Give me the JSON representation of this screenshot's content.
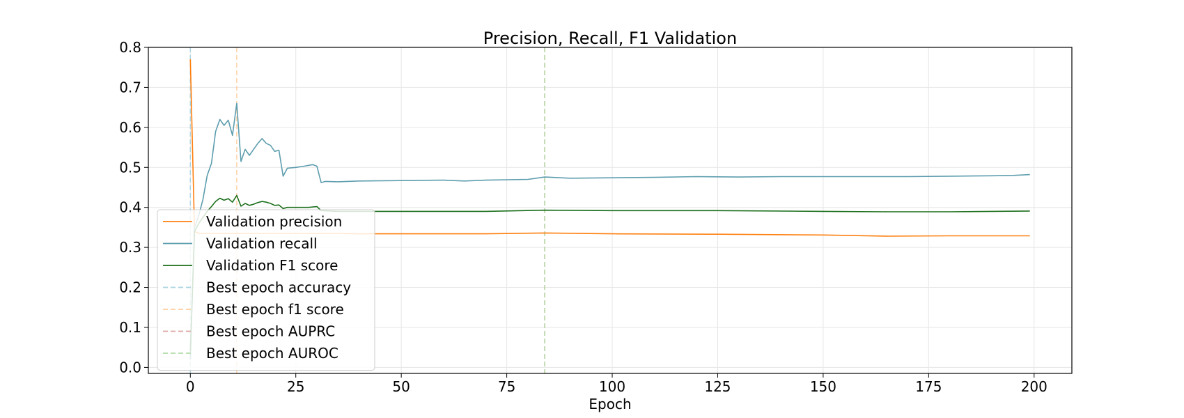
{
  "chart_data": {
    "type": "line",
    "title": "Precision, Recall, F1 Validation",
    "xlabel": "Epoch",
    "ylabel": "",
    "xlim": [
      -9.95,
      208.95
    ],
    "ylim": [
      -0.015,
      0.8
    ],
    "xticks": [
      0,
      25,
      50,
      75,
      100,
      125,
      150,
      175,
      200
    ],
    "yticks": [
      0.0,
      0.1,
      0.2,
      0.3,
      0.4,
      0.5,
      0.6,
      0.7,
      0.8
    ],
    "xtick_labels": [
      "0",
      "25",
      "50",
      "75",
      "100",
      "125",
      "150",
      "175",
      "200"
    ],
    "ytick_labels": [
      "0.0",
      "0.1",
      "0.2",
      "0.3",
      "0.4",
      "0.5",
      "0.6",
      "0.7",
      "0.8"
    ],
    "grid": true,
    "legend_position": "lower-left",
    "series": [
      {
        "name": "Validation precision",
        "color": "#ff7f0e",
        "x": [
          0,
          1,
          2,
          3,
          5,
          7,
          9,
          11,
          13,
          15,
          18,
          21,
          25,
          30,
          35,
          40,
          50,
          60,
          70,
          84,
          100,
          125,
          150,
          165,
          180,
          199
        ],
        "y": [
          0.77,
          0.34,
          0.335,
          0.335,
          0.335,
          0.335,
          0.335,
          0.335,
          0.335,
          0.335,
          0.335,
          0.335,
          0.335,
          0.335,
          0.335,
          0.334,
          0.334,
          0.334,
          0.334,
          0.336,
          0.334,
          0.333,
          0.331,
          0.328,
          0.329,
          0.329
        ]
      },
      {
        "name": "Validation recall",
        "color": "#5d9dae",
        "x": [
          0,
          1,
          2,
          3,
          4,
          5,
          6,
          7,
          8,
          9,
          10,
          11,
          12,
          13,
          14,
          15,
          16,
          17,
          18,
          19,
          20,
          21,
          22,
          23,
          25,
          27,
          29,
          30,
          31,
          32,
          35,
          40,
          50,
          60,
          65,
          70,
          80,
          84,
          90,
          100,
          110,
          120,
          130,
          140,
          150,
          160,
          170,
          180,
          190,
          195,
          199
        ],
        "y": [
          0.02,
          0.35,
          0.38,
          0.42,
          0.48,
          0.51,
          0.59,
          0.62,
          0.605,
          0.618,
          0.58,
          0.66,
          0.515,
          0.545,
          0.53,
          0.545,
          0.56,
          0.572,
          0.56,
          0.555,
          0.54,
          0.543,
          0.478,
          0.498,
          0.5,
          0.503,
          0.507,
          0.503,
          0.462,
          0.465,
          0.464,
          0.466,
          0.467,
          0.468,
          0.466,
          0.468,
          0.47,
          0.476,
          0.473,
          0.474,
          0.475,
          0.477,
          0.476,
          0.477,
          0.477,
          0.477,
          0.477,
          0.478,
          0.479,
          0.48,
          0.482
        ]
      },
      {
        "name": "Validation F1 score",
        "color": "#1a6e1a",
        "x": [
          0,
          1,
          2,
          3,
          4,
          5,
          6,
          7,
          8,
          9,
          10,
          11,
          12,
          13,
          14,
          15,
          16,
          17,
          18,
          19,
          20,
          21,
          22,
          23,
          25,
          28,
          30,
          31,
          35,
          40,
          50,
          60,
          70,
          84,
          100,
          125,
          150,
          165,
          180,
          199
        ],
        "y": [
          0.04,
          0.34,
          0.36,
          0.375,
          0.39,
          0.402,
          0.415,
          0.423,
          0.418,
          0.422,
          0.413,
          0.43,
          0.403,
          0.41,
          0.405,
          0.408,
          0.412,
          0.415,
          0.413,
          0.41,
          0.405,
          0.406,
          0.397,
          0.4,
          0.4,
          0.4,
          0.402,
          0.392,
          0.39,
          0.39,
          0.39,
          0.39,
          0.39,
          0.393,
          0.392,
          0.392,
          0.39,
          0.389,
          0.389,
          0.391
        ]
      }
    ],
    "vlines": [
      {
        "name": "Best epoch accuracy",
        "x": 0,
        "color": "#a9d4e0"
      },
      {
        "name": "Best epoch f1 score",
        "x": 11,
        "color": "#ffcfa0"
      },
      {
        "name": "Best epoch AUPRC",
        "x": 84,
        "color": "#e0a4a4"
      },
      {
        "name": "Best epoch AUROC",
        "x": 84,
        "color": "#b0dca4"
      }
    ]
  }
}
